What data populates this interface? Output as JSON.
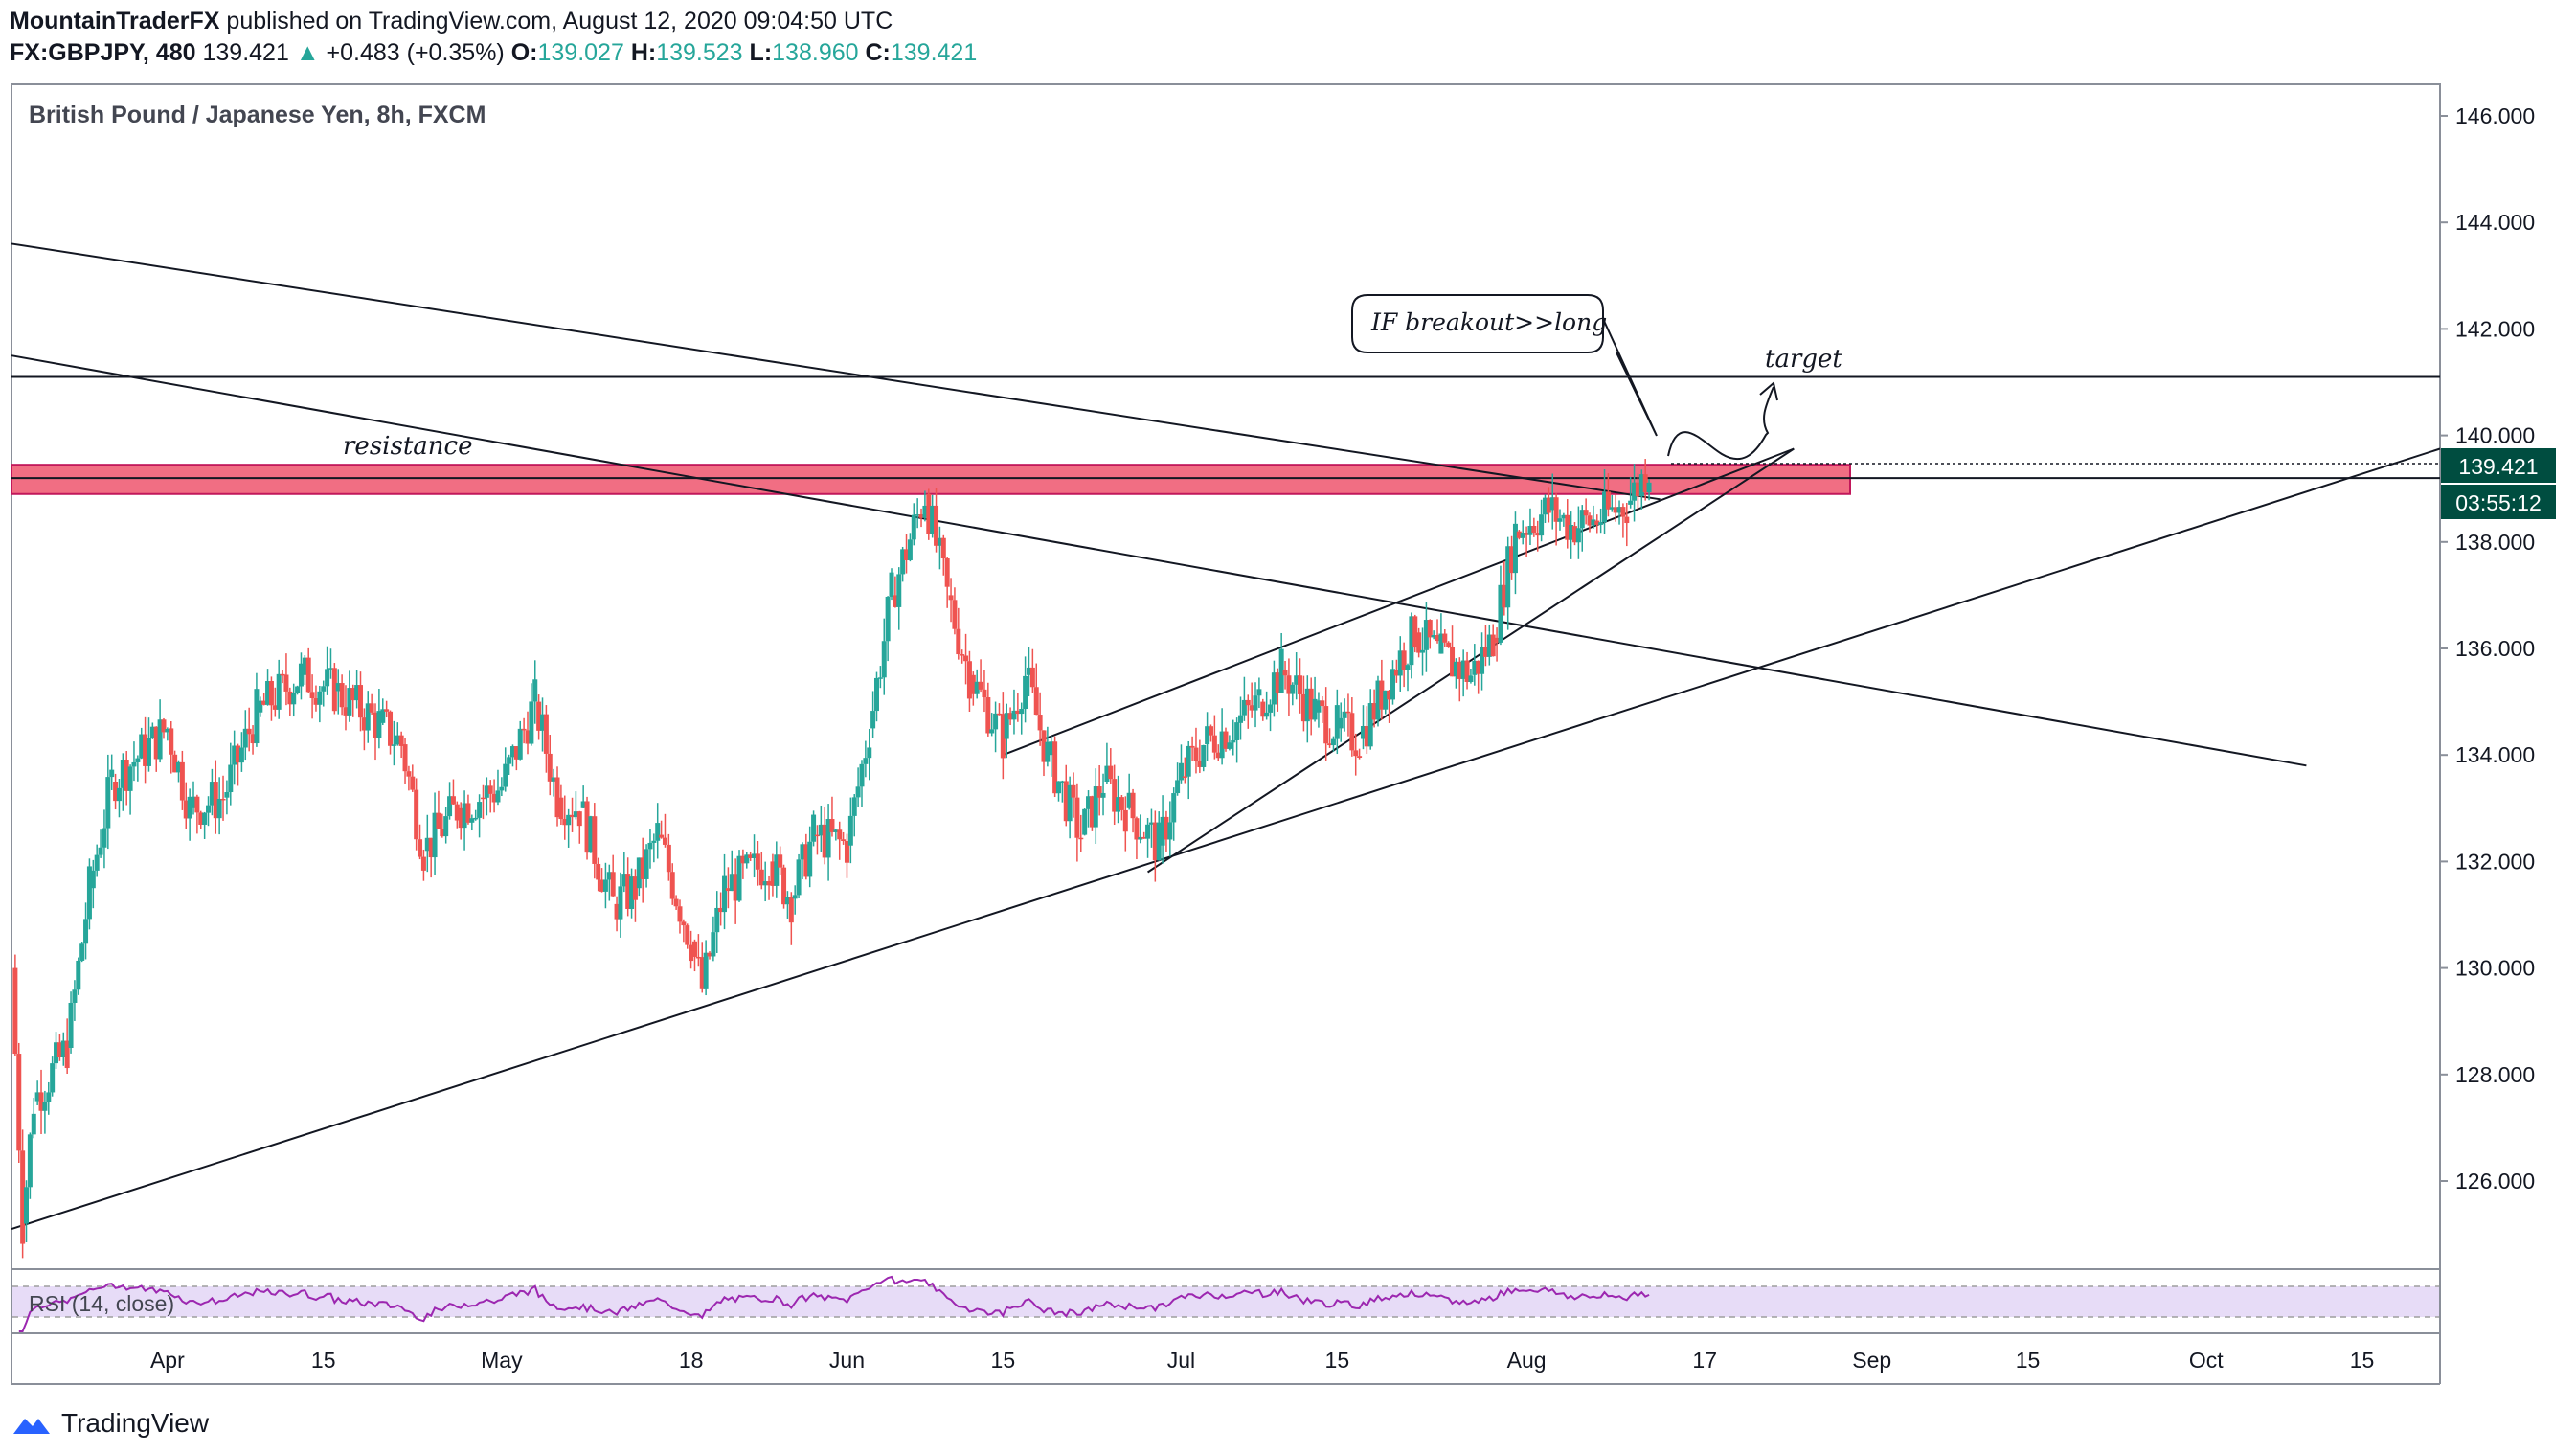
{
  "header": {
    "author": "MountainTraderFX",
    "published_text": "published on TradingView.com, August 12, 2020 09:04:50 UTC",
    "symbol": "FX:GBPJPY, 480",
    "last": "139.421",
    "change_arrow": "▲",
    "change": "+0.483 (+0.35%)",
    "o_label": "O:",
    "o_value": "139.027",
    "h_label": "H:",
    "h_value": "139.523",
    "l_label": "L:",
    "l_value": "138.960",
    "c_label": "C:",
    "c_value": "139.421"
  },
  "chart_title": "British Pound / Japanese Yen, 8h, FXCM",
  "price_axis": {
    "ticks": [
      "146.000",
      "144.000",
      "142.000",
      "140.000",
      "138.000",
      "136.000",
      "134.000",
      "132.000",
      "130.000",
      "128.000",
      "126.000"
    ],
    "current_price": "139.421",
    "countdown": "03:55:12"
  },
  "time_axis": {
    "labels": [
      "Apr",
      "15",
      "May",
      "18",
      "Jun",
      "15",
      "Jul",
      "15",
      "Aug",
      "17",
      "Sep",
      "15",
      "Oct",
      "15"
    ]
  },
  "annotations": {
    "resistance": "resistance",
    "callout": "IF breakout>>long",
    "target": "target"
  },
  "rsi_label": "RSI (14, close)",
  "footer": {
    "brand": "TradingView"
  },
  "colors": {
    "up": "#26a69a",
    "down": "#ef5350",
    "resistance_zone": "#f05e75",
    "rsi_line": "#9c27b0",
    "rsi_band": "#e1d3f5",
    "price_label_bg": "#004d40"
  },
  "chart_data": {
    "type": "candlestick",
    "title": "British Pound / Japanese Yen, 8h, FXCM",
    "x_range": [
      "2020-03-18",
      "2020-10-22"
    ],
    "ylim": [
      124.0,
      147.0
    ],
    "close_series": [
      {
        "date": "2020-03-18",
        "close": 130.0
      },
      {
        "date": "2020-03-19",
        "close": 125.2
      },
      {
        "date": "2020-03-20",
        "close": 127.5
      },
      {
        "date": "2020-03-23",
        "close": 128.5
      },
      {
        "date": "2020-03-25",
        "close": 131.5
      },
      {
        "date": "2020-03-27",
        "close": 133.5
      },
      {
        "date": "2020-04-01",
        "close": 134.5
      },
      {
        "date": "2020-04-03",
        "close": 133.0
      },
      {
        "date": "2020-04-06",
        "close": 133.2
      },
      {
        "date": "2020-04-09",
        "close": 134.8
      },
      {
        "date": "2020-04-13",
        "close": 135.5
      },
      {
        "date": "2020-04-16",
        "close": 135.2
      },
      {
        "date": "2020-04-20",
        "close": 134.6
      },
      {
        "date": "2020-04-22",
        "close": 134.2
      },
      {
        "date": "2020-04-24",
        "close": 132.2
      },
      {
        "date": "2020-04-27",
        "close": 133.0
      },
      {
        "date": "2020-04-29",
        "close": 133.2
      },
      {
        "date": "2020-05-01",
        "close": 133.4
      },
      {
        "date": "2020-05-04",
        "close": 135.0
      },
      {
        "date": "2020-05-06",
        "close": 133.2
      },
      {
        "date": "2020-05-08",
        "close": 133.0
      },
      {
        "date": "2020-05-11",
        "close": 131.2
      },
      {
        "date": "2020-05-13",
        "close": 131.5
      },
      {
        "date": "2020-05-15",
        "close": 132.5
      },
      {
        "date": "2020-05-18",
        "close": 130.5
      },
      {
        "date": "2020-05-19",
        "close": 129.6
      },
      {
        "date": "2020-05-21",
        "close": 131.5
      },
      {
        "date": "2020-05-25",
        "close": 132.0
      },
      {
        "date": "2020-05-27",
        "close": 131.3
      },
      {
        "date": "2020-05-29",
        "close": 132.5
      },
      {
        "date": "2020-06-01",
        "close": 132.3
      },
      {
        "date": "2020-06-03",
        "close": 134.5
      },
      {
        "date": "2020-06-05",
        "close": 137.0
      },
      {
        "date": "2020-06-08",
        "close": 138.9
      },
      {
        "date": "2020-06-10",
        "close": 137.0
      },
      {
        "date": "2020-06-12",
        "close": 135.5
      },
      {
        "date": "2020-06-15",
        "close": 134.3
      },
      {
        "date": "2020-06-17",
        "close": 135.5
      },
      {
        "date": "2020-06-19",
        "close": 134.0
      },
      {
        "date": "2020-06-22",
        "close": 132.5
      },
      {
        "date": "2020-06-24",
        "close": 133.5
      },
      {
        "date": "2020-06-26",
        "close": 133.0
      },
      {
        "date": "2020-06-29",
        "close": 132.3
      },
      {
        "date": "2020-07-01",
        "close": 133.6
      },
      {
        "date": "2020-07-03",
        "close": 134.2
      },
      {
        "date": "2020-07-06",
        "close": 134.6
      },
      {
        "date": "2020-07-08",
        "close": 135.0
      },
      {
        "date": "2020-07-10",
        "close": 135.6
      },
      {
        "date": "2020-07-13",
        "close": 134.8
      },
      {
        "date": "2020-07-15",
        "close": 134.5
      },
      {
        "date": "2020-07-17",
        "close": 134.3
      },
      {
        "date": "2020-07-20",
        "close": 135.6
      },
      {
        "date": "2020-07-22",
        "close": 136.3
      },
      {
        "date": "2020-07-24",
        "close": 135.9
      },
      {
        "date": "2020-07-27",
        "close": 135.5
      },
      {
        "date": "2020-07-29",
        "close": 136.2
      },
      {
        "date": "2020-07-31",
        "close": 138.2
      },
      {
        "date": "2020-08-03",
        "close": 138.6
      },
      {
        "date": "2020-08-05",
        "close": 138.3
      },
      {
        "date": "2020-08-07",
        "close": 138.4
      },
      {
        "date": "2020-08-10",
        "close": 138.7
      },
      {
        "date": "2020-08-12",
        "close": 139.421
      }
    ],
    "resistance_zone": [
      138.9,
      139.45
    ],
    "horizontal_levels": [
      141.1,
      139.2
    ],
    "trendlines": [
      {
        "from": [
          "2020-03-18",
          143.6
        ],
        "to": [
          "2020-08-13",
          138.8
        ]
      },
      {
        "from": [
          "2020-03-18",
          141.5
        ],
        "to": [
          "2020-10-10",
          133.8
        ]
      },
      {
        "from": [
          "2020-03-18",
          125.1
        ],
        "to": [
          "2020-10-22",
          139.75
        ]
      },
      {
        "from": [
          "2020-06-15",
          134.0
        ],
        "to": [
          "2020-08-25",
          139.75
        ]
      },
      {
        "from": [
          "2020-06-28",
          131.8
        ],
        "to": [
          "2020-08-25",
          139.75
        ]
      }
    ],
    "rsi": {
      "period": 14,
      "source": "close"
    }
  }
}
